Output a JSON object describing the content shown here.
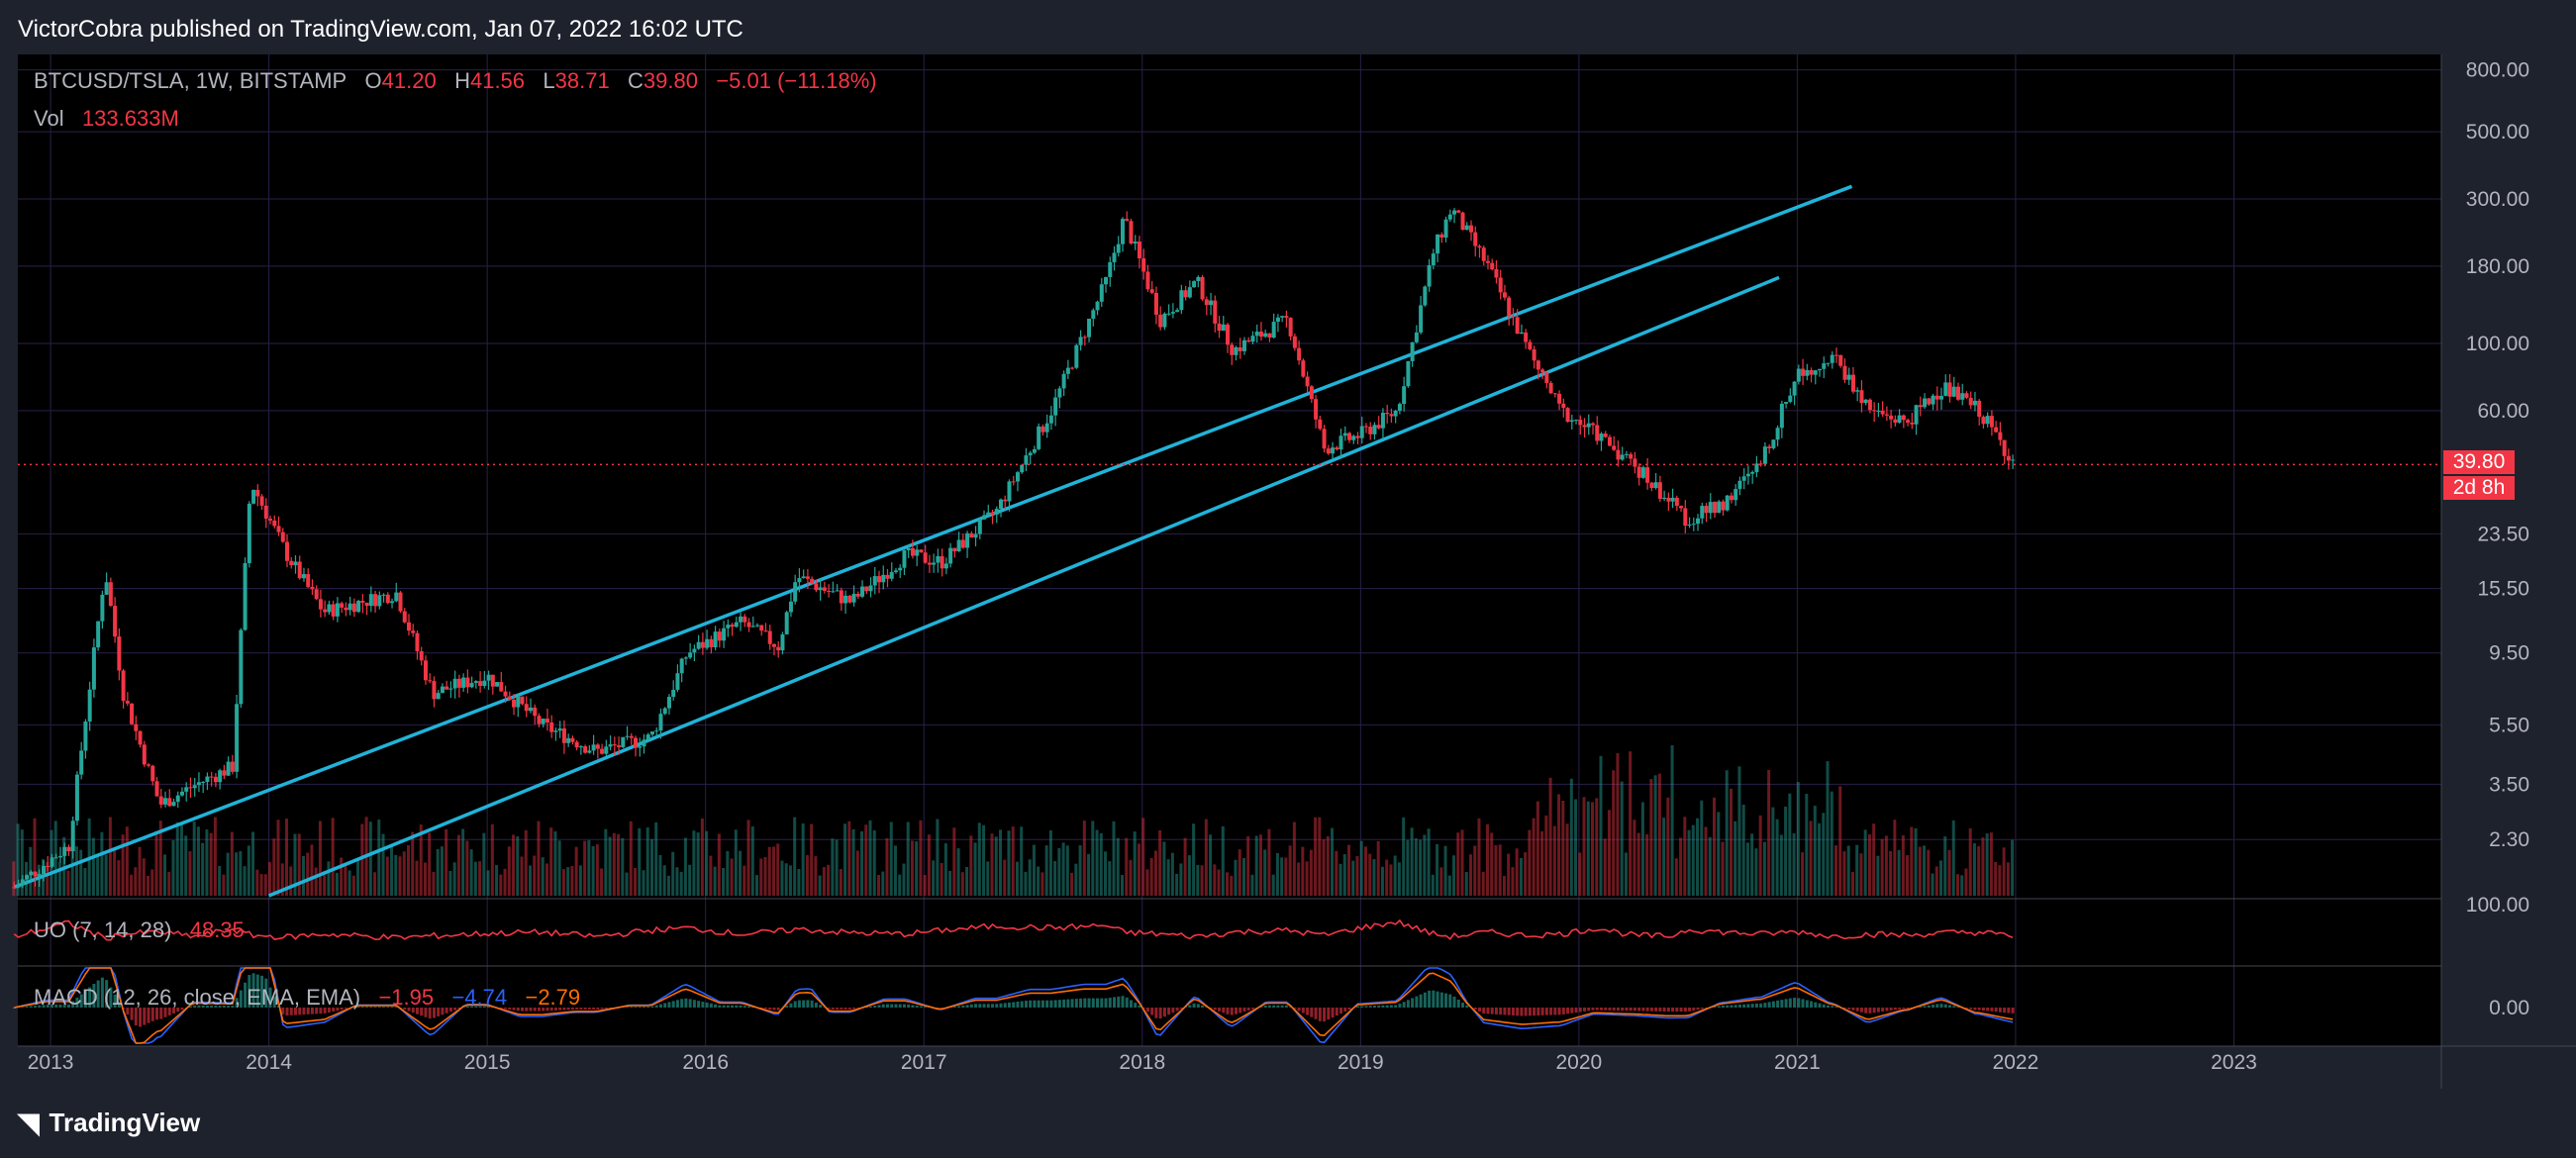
{
  "header": {
    "published": "VictorCobra published on TradingView.com, Jan 07, 2022 16:02 UTC"
  },
  "legend": {
    "symbol": "BTCUSD/TSLA, 1W, BITSTAMP",
    "open_label": "O",
    "open": "41.20",
    "high_label": "H",
    "high": "41.56",
    "low_label": "L",
    "low": "38.71",
    "close_label": "C",
    "close": "39.80",
    "change": "−5.01 (−11.18%)",
    "vol_label": "Vol",
    "vol": "133.633M"
  },
  "uo": {
    "label": "UO (7, 14, 28)",
    "value": "48.35"
  },
  "macd": {
    "label": "MACD (12, 26, close, EMA, EMA)",
    "v1": "−1.95",
    "v2": "−4.74",
    "v3": "−2.79"
  },
  "price_tag": {
    "price": "39.80",
    "countdown": "2d 8h"
  },
  "footer": {
    "brand": "TradingView"
  },
  "colors": {
    "up": "#26a69a",
    "down": "#f23645",
    "channel": "#21b3d9",
    "grid": "#2a1f4a",
    "background": "#000000",
    "macd": "#2962ff",
    "signal": "#ff6d00"
  },
  "chart_data": {
    "type": "line",
    "title": "BTCUSD/TSLA, 1W, BITSTAMP",
    "y_scale": "log",
    "y_ticks": [
      "800.00",
      "500.00",
      "300.00",
      "180.00",
      "100.00",
      "60.00",
      "23.50",
      "15.50",
      "9.50",
      "5.50",
      "3.50",
      "2.30"
    ],
    "x_ticks": [
      "2013",
      "2014",
      "2015",
      "2016",
      "2017",
      "2018",
      "2019",
      "2020",
      "2021",
      "2022",
      "2023"
    ],
    "ylim": [
      1.5,
      900
    ],
    "last_price": 39.8,
    "series": [
      {
        "name": "BTCUSD/TSLA",
        "x": [
          "2012-11",
          "2013-02",
          "2013-04",
          "2013-05",
          "2013-07",
          "2013-09",
          "2013-11",
          "2013-12",
          "2014-02",
          "2014-04",
          "2014-08",
          "2014-10",
          "2015-01",
          "2015-04",
          "2015-07",
          "2015-10",
          "2015-12",
          "2016-03",
          "2016-05",
          "2016-06",
          "2016-09",
          "2016-12",
          "2017-02",
          "2017-05",
          "2017-08",
          "2017-11",
          "2017-12",
          "2018-02",
          "2018-04",
          "2018-06",
          "2018-09",
          "2018-11",
          "2019-01",
          "2019-03",
          "2019-05",
          "2019-06",
          "2019-08",
          "2019-10",
          "2019-12",
          "2020-02",
          "2020-04",
          "2020-06",
          "2020-07",
          "2020-09",
          "2020-11",
          "2021-01",
          "2021-03",
          "2021-05",
          "2021-07",
          "2021-09",
          "2021-11",
          "2022-01"
        ],
        "values": [
          1.6,
          2.2,
          18,
          7,
          3.0,
          3.5,
          4,
          35,
          20,
          13,
          15,
          7,
          8,
          5.5,
          4.5,
          5,
          9.5,
          12,
          10,
          17,
          14,
          20,
          19,
          28,
          60,
          160,
          260,
          120,
          160,
          95,
          120,
          45,
          50,
          60,
          200,
          280,
          180,
          100,
          60,
          50,
          40,
          30,
          26,
          30,
          40,
          80,
          90,
          60,
          55,
          72,
          60,
          39.8
        ]
      },
      {
        "name": "UO (7, 14, 28)",
        "values": [
          48,
          70,
          45,
          52,
          55,
          48,
          60,
          50,
          47,
          52,
          46,
          49,
          53,
          55,
          48,
          58,
          62,
          52,
          56,
          60,
          54,
          52,
          58,
          65,
          62,
          66,
          55,
          52,
          48,
          55,
          58,
          50,
          62,
          72,
          52,
          48,
          55,
          50,
          52,
          62,
          50,
          48,
          60,
          55,
          52,
          56,
          48,
          52,
          50,
          54,
          55,
          48.35
        ]
      }
    ],
    "channel_lines": [
      {
        "from": [
          "2012-11",
          1.6
        ],
        "to": [
          "2021-04",
          330
        ]
      },
      {
        "from": [
          "2014-01",
          1.5
        ],
        "to": [
          "2020-12",
          165
        ]
      }
    ]
  }
}
